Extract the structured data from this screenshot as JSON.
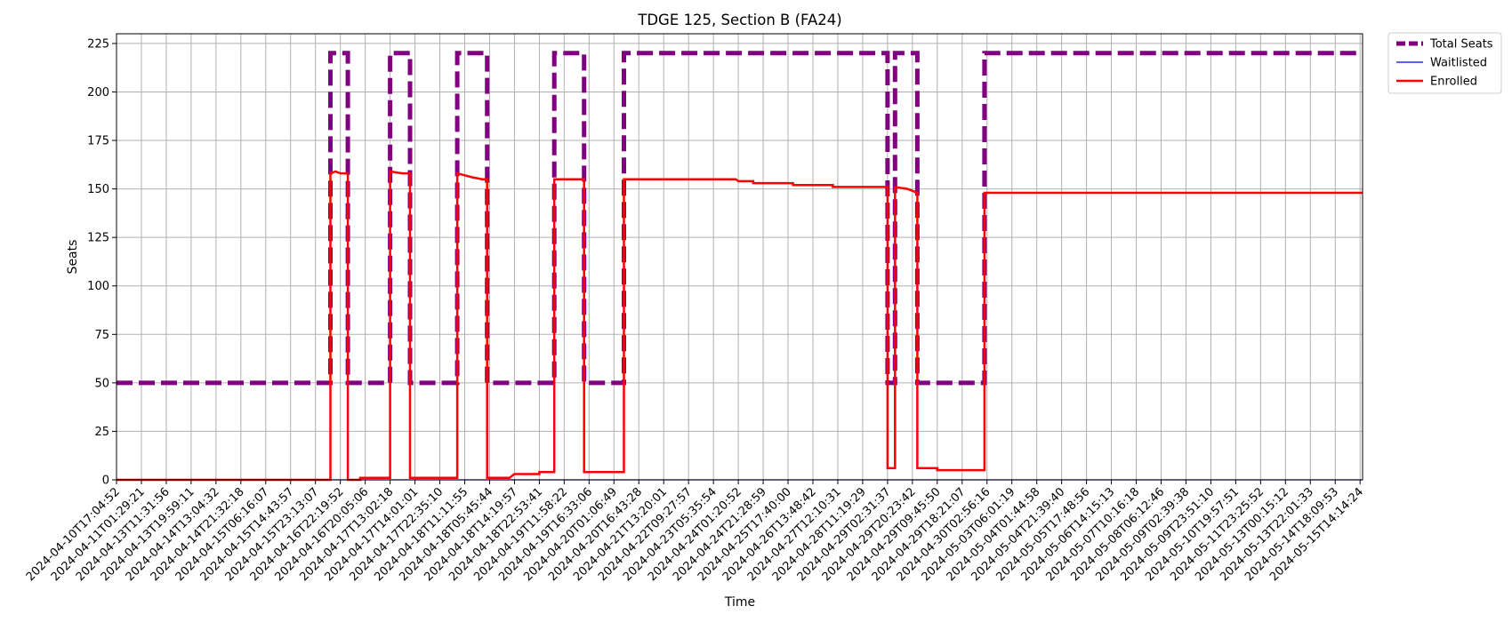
{
  "chart_data": {
    "type": "line",
    "title": "TDGE 125, Section B (FA24)",
    "xlabel": "Time",
    "ylabel": "Seats",
    "ylim": [
      0,
      230
    ],
    "yticks": [
      0,
      25,
      50,
      75,
      100,
      125,
      150,
      175,
      200,
      225
    ],
    "grid": true,
    "legend_position": "outside-top-right",
    "x_tick_labels": [
      "2024-04-10T17:04:52",
      "2024-04-11T01:29:21",
      "2024-04-13T11:31:56",
      "2024-04-13T19:59:11",
      "2024-04-14T13:04:32",
      "2024-04-14T21:32:18",
      "2024-04-15T06:16:07",
      "2024-04-15T14:43:57",
      "2024-04-15T23:13:07",
      "2024-04-16T22:19:52",
      "2024-04-16T20:05:06",
      "2024-04-17T13:02:18",
      "2024-04-17T14:01:01",
      "2024-04-17T22:35:10",
      "2024-04-18T11:11:55",
      "2024-04-18T05:45:44",
      "2024-04-18T14:19:57",
      "2024-04-18T22:53:41",
      "2024-04-19T11:58:22",
      "2024-04-19T16:33:06",
      "2024-04-20T01:06:49",
      "2024-04-20T16:43:28",
      "2024-04-21T13:20:01",
      "2024-04-22T09:27:57",
      "2024-04-23T05:35:54",
      "2024-04-24T01:20:52",
      "2024-04-24T21:28:59",
      "2024-04-25T17:40:00",
      "2024-04-26T13:48:42",
      "2024-04-27T12:10:31",
      "2024-04-28T11:19:29",
      "2024-04-29T02:31:37",
      "2024-04-29T20:23:42",
      "2024-04-29T09:45:50",
      "2024-04-29T18:21:07",
      "2024-04-30T02:56:16",
      "2024-05-03T06:01:19",
      "2024-05-04T01:44:58",
      "2024-05-04T21:39:40",
      "2024-05-05T17:48:56",
      "2024-05-06T14:15:13",
      "2024-05-07T10:16:18",
      "2024-05-08T06:12:46",
      "2024-05-09T02:39:38",
      "2024-05-09T23:51:10",
      "2024-05-10T19:57:51",
      "2024-05-11T23:25:52",
      "2024-05-13T00:15:12",
      "2024-05-13T22:01:33",
      "2024-05-14T18:09:53",
      "2024-05-15T14:14:24"
    ],
    "x_range": [
      0,
      50.1
    ],
    "series": [
      {
        "name": "Total Seats",
        "color": "#800080",
        "style": "dashed",
        "points": [
          [
            0,
            50
          ],
          [
            8.6,
            50
          ],
          [
            8.6,
            220
          ],
          [
            9.3,
            220
          ],
          [
            9.3,
            50
          ],
          [
            11.0,
            50
          ],
          [
            11.0,
            220
          ],
          [
            11.8,
            220
          ],
          [
            11.8,
            50
          ],
          [
            13.7,
            50
          ],
          [
            13.7,
            220
          ],
          [
            14.9,
            220
          ],
          [
            14.9,
            50
          ],
          [
            17.6,
            50
          ],
          [
            17.6,
            220
          ],
          [
            18.8,
            220
          ],
          [
            18.8,
            50
          ],
          [
            20.4,
            50
          ],
          [
            20.4,
            220
          ],
          [
            31.0,
            220
          ],
          [
            31.0,
            50
          ],
          [
            31.3,
            50
          ],
          [
            31.3,
            220
          ],
          [
            32.2,
            220
          ],
          [
            32.2,
            50
          ],
          [
            34.9,
            50
          ],
          [
            34.9,
            220
          ],
          [
            50.1,
            220
          ]
        ]
      },
      {
        "name": "Waitlisted",
        "color": "#0000ff",
        "style": "solid",
        "points": [
          [
            0,
            0
          ],
          [
            50.1,
            0
          ]
        ]
      },
      {
        "name": "Enrolled",
        "color": "#ff0000",
        "style": "solid",
        "points": [
          [
            0,
            0
          ],
          [
            8.6,
            0
          ],
          [
            8.6,
            158
          ],
          [
            8.8,
            159
          ],
          [
            9.0,
            158
          ],
          [
            9.3,
            158
          ],
          [
            9.3,
            0
          ],
          [
            9.8,
            0
          ],
          [
            9.8,
            1
          ],
          [
            11.0,
            1
          ],
          [
            11.0,
            159
          ],
          [
            11.5,
            158
          ],
          [
            11.8,
            158
          ],
          [
            11.8,
            1
          ],
          [
            13.7,
            1
          ],
          [
            13.7,
            158
          ],
          [
            14.0,
            157
          ],
          [
            14.3,
            156
          ],
          [
            14.7,
            155
          ],
          [
            14.9,
            155
          ],
          [
            14.9,
            1
          ],
          [
            15.8,
            1
          ],
          [
            15.9,
            2
          ],
          [
            16.0,
            3
          ],
          [
            17.0,
            3
          ],
          [
            17.0,
            4
          ],
          [
            17.6,
            4
          ],
          [
            17.6,
            155
          ],
          [
            18.8,
            155
          ],
          [
            18.8,
            4
          ],
          [
            20.4,
            4
          ],
          [
            20.4,
            155
          ],
          [
            24.9,
            155
          ],
          [
            25.0,
            154
          ],
          [
            25.6,
            154
          ],
          [
            25.6,
            153
          ],
          [
            26.2,
            153
          ],
          [
            27.2,
            153
          ],
          [
            27.2,
            152
          ],
          [
            28.1,
            152
          ],
          [
            28.8,
            152
          ],
          [
            28.8,
            151
          ],
          [
            31.0,
            151
          ],
          [
            31.0,
            6
          ],
          [
            31.3,
            6
          ],
          [
            31.3,
            151
          ],
          [
            31.8,
            150
          ],
          [
            32.2,
            148
          ],
          [
            32.2,
            6
          ],
          [
            33.0,
            6
          ],
          [
            33.0,
            5
          ],
          [
            34.9,
            5
          ],
          [
            34.9,
            148
          ],
          [
            50.1,
            148
          ]
        ]
      }
    ]
  }
}
